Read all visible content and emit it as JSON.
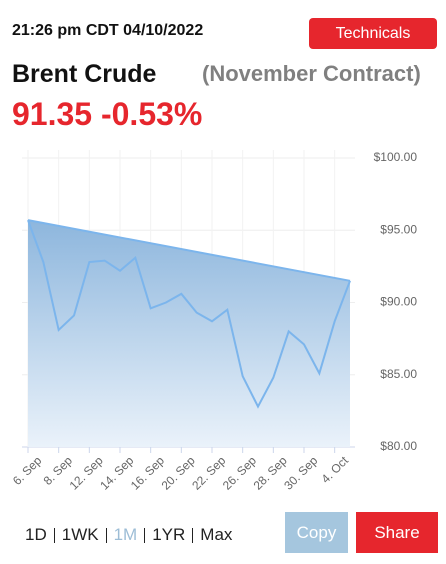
{
  "header": {
    "timestamp": "21:26 pm CDT 04/10/2022",
    "technicals_button": "Technicals",
    "title": "Brent Crude",
    "contract": "(November Contract)",
    "price": "91.35",
    "change": "-0.53%"
  },
  "chart_data": {
    "type": "line",
    "categories": [
      "6. Sep",
      null,
      "8. Sep",
      null,
      "12. Sep",
      null,
      "14. Sep",
      null,
      "16. Sep",
      null,
      "20. Sep",
      null,
      "22. Sep",
      null,
      "26. Sep",
      null,
      "28. Sep",
      null,
      "30. Sep",
      null,
      "4. Oct",
      null
    ],
    "series": [
      {
        "color": "#7cb5ec",
        "values": [
          95.7,
          92.8,
          88.1,
          89.1,
          92.8,
          92.9,
          92.2,
          93.1,
          89.6,
          90.0,
          90.6,
          89.3,
          88.7,
          89.5,
          84.9,
          82.8,
          84.8,
          88.0,
          87.1,
          85.1,
          88.7,
          91.5
        ]
      }
    ],
    "ylim": [
      80,
      100
    ],
    "yticks": [
      {
        "value": 80,
        "label": "$80.00"
      },
      {
        "value": 85,
        "label": "$85.00"
      },
      {
        "value": 90,
        "label": "$90.00"
      },
      {
        "value": 95,
        "label": "$95.00"
      },
      {
        "value": 100,
        "label": "$100.00"
      }
    ],
    "grid": true
  },
  "controls": {
    "ranges": [
      "1D",
      "1WK",
      "1M",
      "1YR",
      "Max"
    ],
    "active_range": 2,
    "copy_button": "Copy",
    "share_button": "Share"
  }
}
